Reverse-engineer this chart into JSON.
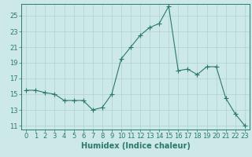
{
  "x": [
    0,
    1,
    2,
    3,
    4,
    5,
    6,
    7,
    8,
    9,
    10,
    11,
    12,
    13,
    14,
    15,
    16,
    17,
    18,
    19,
    20,
    21,
    22,
    23
  ],
  "y": [
    15.5,
    15.5,
    15.2,
    15.0,
    14.2,
    14.2,
    14.2,
    13.0,
    13.3,
    15.0,
    19.5,
    21.0,
    22.5,
    23.5,
    24.0,
    26.2,
    18.0,
    18.2,
    17.5,
    18.5,
    18.5,
    14.5,
    12.5,
    11.0
  ],
  "line_color": "#2a7a6a",
  "marker": "+",
  "marker_size": 4,
  "bg_color": "#cce8e8",
  "grid_color": "#b0d0d0",
  "ylabel_ticks": [
    11,
    13,
    15,
    17,
    19,
    21,
    23,
    25
  ],
  "xlabel": "Humidex (Indice chaleur)",
  "xlim": [
    -0.5,
    23.5
  ],
  "ylim": [
    10.5,
    26.5
  ],
  "tick_fontsize": 6.0,
  "xlabel_fontsize": 7.0
}
